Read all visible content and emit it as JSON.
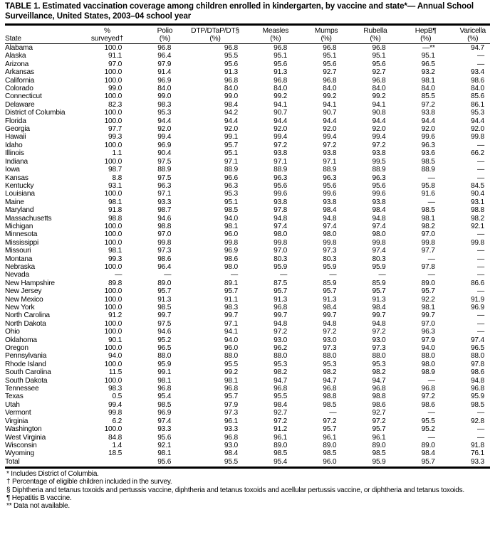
{
  "title": "TABLE 1. Estimated vaccination coverage among children enrolled in kindergarten, by vaccine and state*— Annual School Surveillance, United States, 2003–04 school year",
  "columns": [
    {
      "top": "",
      "bottom": "State"
    },
    {
      "top": "%",
      "bottom": "surveyed†"
    },
    {
      "top": "Polio",
      "bottom": "(%)"
    },
    {
      "top": "DTP/DTaP/DT§",
      "bottom": "(%)"
    },
    {
      "top": "Measles",
      "bottom": "(%)"
    },
    {
      "top": "Mumps",
      "bottom": "(%)"
    },
    {
      "top": "Rubella",
      "bottom": "(%)"
    },
    {
      "top": "HepB¶",
      "bottom": "(%)"
    },
    {
      "top": "Varicella",
      "bottom": "(%)"
    }
  ],
  "rows": [
    [
      "Alabama",
      "100.0",
      "96.8",
      "96.8",
      "96.8",
      "96.8",
      "96.8",
      "—**",
      "94.7"
    ],
    [
      "Alaska",
      "91.1",
      "96.4",
      "95.5",
      "95.1",
      "95.1",
      "95.1",
      "95.1",
      "—"
    ],
    [
      "Arizona",
      "97.0",
      "97.9",
      "95.6",
      "95.6",
      "95.6",
      "95.6",
      "96.5",
      "—"
    ],
    [
      "Arkansas",
      "100.0",
      "91.4",
      "91.3",
      "91.3",
      "92.7",
      "92.7",
      "93.2",
      "93.4"
    ],
    [
      "California",
      "100.0",
      "96.9",
      "96.8",
      "96.8",
      "96.8",
      "96.8",
      "98.1",
      "98.6"
    ],
    [
      "Colorado",
      "99.0",
      "84.0",
      "84.0",
      "84.0",
      "84.0",
      "84.0",
      "84.0",
      "84.0"
    ],
    [
      "Connecticut",
      "100.0",
      "99.0",
      "99.0",
      "99.2",
      "99.2",
      "99.2",
      "85.5",
      "85.6"
    ],
    [
      "Delaware",
      "82.3",
      "98.3",
      "98.4",
      "94.1",
      "94.1",
      "94.1",
      "97.2",
      "86.1"
    ],
    [
      "District of Columbia",
      "100.0",
      "95.3",
      "94.2",
      "90.7",
      "90.7",
      "90.8",
      "93.8",
      "95.3"
    ],
    [
      "Florida",
      "100.0",
      "94.4",
      "94.4",
      "94.4",
      "94.4",
      "94.4",
      "94.4",
      "94.4"
    ],
    [
      "Georgia",
      "97.7",
      "92.0",
      "92.0",
      "92.0",
      "92.0",
      "92.0",
      "92.0",
      "92.0"
    ],
    [
      "Hawaii",
      "99.3",
      "99.4",
      "99.1",
      "99.4",
      "99.4",
      "99.4",
      "99.6",
      "99.8"
    ],
    [
      "Idaho",
      "100.0",
      "96.9",
      "95.7",
      "97.2",
      "97.2",
      "97.2",
      "96.3",
      "—"
    ],
    [
      "Illinois",
      "1.1",
      "90.4",
      "95.1",
      "93.8",
      "93.8",
      "93.8",
      "93.6",
      "66.2"
    ],
    [
      "Indiana",
      "100.0",
      "97.5",
      "97.1",
      "97.1",
      "97.1",
      "99.5",
      "98.5",
      "—"
    ],
    [
      "Iowa",
      "98.7",
      "88.9",
      "88.9",
      "88.9",
      "88.9",
      "88.9",
      "88.9",
      "—"
    ],
    [
      "Kansas",
      "8.8",
      "97.5",
      "96.6",
      "96.3",
      "96.3",
      "96.3",
      "—",
      "—"
    ],
    [
      "Kentucky",
      "93.1",
      "96.3",
      "96.3",
      "95.6",
      "95.6",
      "95.6",
      "95.8",
      "84.5"
    ],
    [
      "Louisiana",
      "100.0",
      "97.1",
      "95.3",
      "99.6",
      "99.6",
      "99.6",
      "91.6",
      "90.4"
    ],
    [
      "Maine",
      "98.1",
      "93.3",
      "95.1",
      "93.8",
      "93.8",
      "93.8",
      "—",
      "93.1"
    ],
    [
      "Maryland",
      "91.8",
      "98.7",
      "98.5",
      "97.8",
      "98.4",
      "98.4",
      "98.5",
      "98.8"
    ],
    [
      "Massachusetts",
      "98.8",
      "94.6",
      "94.0",
      "94.8",
      "94.8",
      "94.8",
      "98.1",
      "98.2"
    ],
    [
      "Michigan",
      "100.0",
      "98.8",
      "98.1",
      "97.4",
      "97.4",
      "97.4",
      "98.2",
      "92.1"
    ],
    [
      "Minnesota",
      "100.0",
      "97.0",
      "96.0",
      "98.0",
      "98.0",
      "98.0",
      "97.0",
      "—"
    ],
    [
      "Mississippi",
      "100.0",
      "99.8",
      "99.8",
      "99.8",
      "99.8",
      "99.8",
      "99.8",
      "99.8"
    ],
    [
      "Missouri",
      "98.1",
      "97.3",
      "96.9",
      "97.0",
      "97.3",
      "97.4",
      "97.7",
      "—"
    ],
    [
      "Montana",
      "99.3",
      "98.6",
      "98.6",
      "80.3",
      "80.3",
      "80.3",
      "—",
      "—"
    ],
    [
      "Nebraska",
      "100.0",
      "96.4",
      "98.0",
      "95.9",
      "95.9",
      "95.9",
      "97.8",
      "—"
    ],
    [
      "Nevada",
      "—",
      "—",
      "—",
      "—",
      "—",
      "—",
      "—",
      "—"
    ],
    [
      "New Hampshire",
      "89.8",
      "89.0",
      "89.1",
      "87.5",
      "85.9",
      "85.9",
      "89.0",
      "86.6"
    ],
    [
      "New Jersey",
      "100.0",
      "95.7",
      "95.7",
      "95.7",
      "95.7",
      "95.7",
      "95.7",
      "—"
    ],
    [
      "New Mexico",
      "100.0",
      "91.3",
      "91.1",
      "91.3",
      "91.3",
      "91.3",
      "92.2",
      "91.9"
    ],
    [
      "New York",
      "100.0",
      "98.5",
      "98.3",
      "96.8",
      "98.4",
      "98.4",
      "98.1",
      "96.9"
    ],
    [
      "North Carolina",
      "91.2",
      "99.7",
      "99.7",
      "99.7",
      "99.7",
      "99.7",
      "99.7",
      "—"
    ],
    [
      "North Dakota",
      "100.0",
      "97.5",
      "97.1",
      "94.8",
      "94.8",
      "94.8",
      "97.0",
      "—"
    ],
    [
      "Ohio",
      "100.0",
      "94.6",
      "94.1",
      "97.2",
      "97.2",
      "97.2",
      "96.3",
      "—"
    ],
    [
      "Oklahoma",
      "90.1",
      "95.2",
      "94.0",
      "93.0",
      "93.0",
      "93.0",
      "97.9",
      "97.4"
    ],
    [
      "Oregon",
      "100.0",
      "96.5",
      "96.0",
      "96.2",
      "97.3",
      "97.3",
      "94.0",
      "96.5"
    ],
    [
      "Pennsylvania",
      "94.0",
      "88.0",
      "88.0",
      "88.0",
      "88.0",
      "88.0",
      "88.0",
      "88.0"
    ],
    [
      "Rhode Island",
      "100.0",
      "95.9",
      "95.5",
      "95.3",
      "95.3",
      "95.3",
      "98.0",
      "97.8"
    ],
    [
      "South Carolina",
      "11.5",
      "99.1",
      "99.2",
      "98.2",
      "98.2",
      "98.2",
      "98.9",
      "98.6"
    ],
    [
      "South Dakota",
      "100.0",
      "98.1",
      "98.1",
      "94.7",
      "94.7",
      "94.7",
      "—",
      "94.8"
    ],
    [
      "Tennessee",
      "98.3",
      "96.8",
      "96.8",
      "96.8",
      "96.8",
      "96.8",
      "96.8",
      "96.8"
    ],
    [
      "Texas",
      "0.5",
      "95.4",
      "95.7",
      "95.5",
      "98.8",
      "98.8",
      "97.2",
      "95.9"
    ],
    [
      "Utah",
      "99.4",
      "98.5",
      "97.9",
      "98.4",
      "98.5",
      "98.6",
      "98.6",
      "98.5"
    ],
    [
      "Vermont",
      "99.8",
      "96.9",
      "97.3",
      "92.7",
      "—",
      "92.7",
      "—",
      "—"
    ],
    [
      "Virginia",
      "6.2",
      "97.4",
      "96.1",
      "97.2",
      "97.2",
      "97.2",
      "95.5",
      "92.8"
    ],
    [
      "Washington",
      "100.0",
      "93.3",
      "93.3",
      "91.2",
      "95.7",
      "95.7",
      "95.2",
      "—"
    ],
    [
      "West Virginia",
      "84.8",
      "95.6",
      "96.8",
      "96.1",
      "96.1",
      "96.1",
      "—",
      "—"
    ],
    [
      "Wisconsin",
      "1.4",
      "92.1",
      "93.0",
      "89.0",
      "89.0",
      "89.0",
      "89.0",
      "91.8"
    ],
    [
      "Wyoming",
      "18.5",
      "98.1",
      "98.4",
      "98.5",
      "98.5",
      "98.5",
      "98.4",
      "76.1"
    ],
    [
      "Total",
      "",
      "95.6",
      "95.5",
      "95.4",
      "96.0",
      "95.9",
      "95.7",
      "93.3"
    ]
  ],
  "footnotes": [
    "* Includes District of Columbia.",
    "† Percentage of eligible children included in the survey.",
    "§ Diphtheria and tetanus toxoids and pertussis vaccine, diphtheria and tetanus toxoids and acellular pertussis vaccine, or diphtheria and tetanus toxoids.",
    "¶ Hepatitis B vaccine.",
    "** Data not available."
  ]
}
